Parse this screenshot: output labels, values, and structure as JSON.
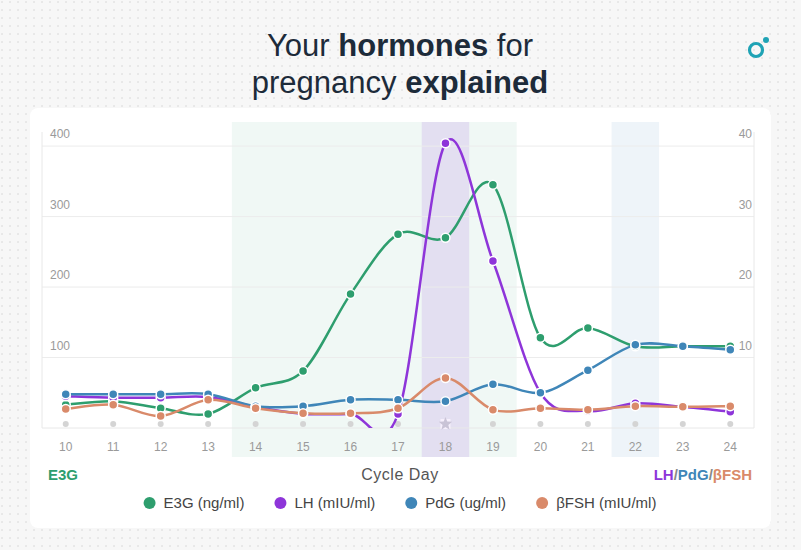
{
  "chart_data": {
    "type": "line",
    "title": "Your hormones for pregnancy explained",
    "x_label": "Cycle Day",
    "y_label": "E3G",
    "y2_label": "LH/PdG/βFSH",
    "x": [
      10,
      11,
      12,
      13,
      14,
      15,
      16,
      17,
      18,
      19,
      20,
      21,
      22,
      23,
      24
    ],
    "xlim": [
      9.5,
      24.5
    ],
    "xticks": [
      10,
      11,
      12,
      13,
      14,
      15,
      16,
      17,
      18,
      19,
      20,
      21,
      22,
      23,
      24
    ],
    "ylim": [
      0,
      420
    ],
    "yticks": [
      100,
      200,
      300,
      400
    ],
    "y2lim": [
      0,
      42
    ],
    "y2ticks": [
      10,
      20,
      30,
      40
    ],
    "grid": true,
    "legend": "bottom",
    "marker": "circle",
    "series": [
      {
        "name": "E3G (ng/ml)",
        "color": "#2e9e6e",
        "values": [
          33,
          38,
          28,
          20,
          57,
          81,
          190,
          275,
          270,
          345,
          128,
          142,
          116,
          116,
          116
        ]
      },
      {
        "name": "LH (mIU/ml)",
        "color": "#8e35d9",
        "axis": "y2",
        "values": [
          4.5,
          4.3,
          4.3,
          4.4,
          3.0,
          2.0,
          2.0,
          2.0,
          40.4,
          23.7,
          5.0,
          2.4,
          3.5,
          3.0,
          2.3
        ]
      },
      {
        "name": "PdG (ug/ml)",
        "color": "#3f86b8",
        "axis": "y2",
        "values": [
          4.8,
          4.8,
          4.8,
          4.8,
          3.1,
          3.1,
          4.0,
          4.0,
          3.8,
          6.2,
          5.0,
          8.2,
          11.8,
          11.6,
          11.1
        ]
      },
      {
        "name": "βFSH (mIU/ml)",
        "color": "#d98a6a",
        "axis": "y2",
        "values": [
          2.7,
          3.3,
          1.7,
          4.0,
          2.8,
          2.1,
          2.1,
          2.8,
          7.1,
          2.6,
          2.8,
          2.6,
          3.1,
          3.0,
          3.1
        ]
      }
    ],
    "highlights": [
      {
        "from": 13.5,
        "to": 19.5,
        "color": "#2e9e6e"
      },
      {
        "from": 17.5,
        "to": 18.5,
        "color": "#8e35d9",
        "marker": "star"
      },
      {
        "from": 21.5,
        "to": 22.5,
        "color": "#3f86b8"
      }
    ]
  }
}
